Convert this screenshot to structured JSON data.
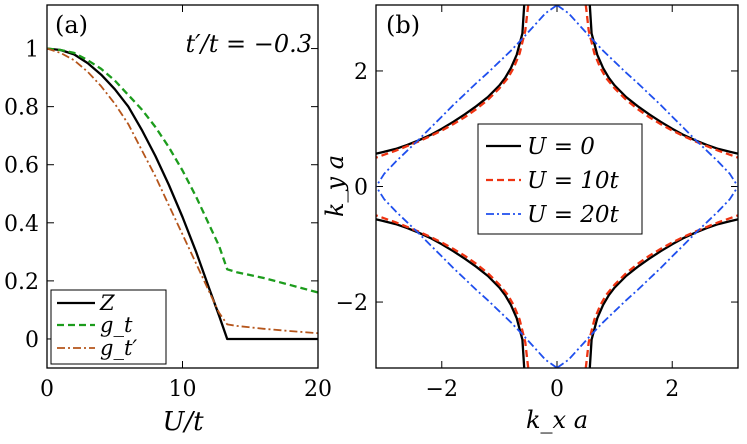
{
  "chart_data": [
    {
      "panel": "(a)",
      "type": "line",
      "annotation": "t′/t = −0.3",
      "xlabel": "U/t",
      "ylabel": "",
      "xlim": [
        0,
        20
      ],
      "ylim": [
        -0.1,
        1.15
      ],
      "xticks": [
        "0",
        "10",
        "20"
      ],
      "yticks": [
        "0",
        "0.2",
        "0.4",
        "0.6",
        "0.8",
        "1"
      ],
      "xtick_values": [
        0,
        10,
        20
      ],
      "ytick_values": [
        0,
        0.2,
        0.4,
        0.6,
        0.8,
        1.0
      ],
      "legend_position": "bottom-left",
      "series": [
        {
          "name": "Z",
          "color": "#000000",
          "style": "solid",
          "x": [
            0,
            1,
            2,
            3,
            4,
            5,
            6,
            7,
            8,
            9,
            10,
            11,
            12,
            12.7,
            13.3,
            14,
            16,
            18,
            20
          ],
          "y": [
            1.0,
            0.995,
            0.98,
            0.95,
            0.91,
            0.86,
            0.8,
            0.72,
            0.63,
            0.53,
            0.42,
            0.3,
            0.17,
            0.08,
            0.0,
            0.0,
            0.0,
            0.0,
            0.0
          ]
        },
        {
          "name": "g_t",
          "color": "#1c9c1c",
          "style": "dashed",
          "x": [
            0,
            1,
            2,
            3,
            4,
            5,
            6,
            7,
            8,
            9,
            10,
            11,
            12,
            12.7,
            13.3,
            14,
            16,
            18,
            20
          ],
          "y": [
            1.0,
            0.995,
            0.985,
            0.96,
            0.93,
            0.89,
            0.84,
            0.79,
            0.73,
            0.66,
            0.58,
            0.49,
            0.39,
            0.32,
            0.24,
            0.23,
            0.21,
            0.185,
            0.16
          ]
        },
        {
          "name": "g_t′",
          "color": "#b5551b",
          "style": "dashdot",
          "x": [
            0,
            1,
            2,
            3,
            4,
            5,
            6,
            7,
            8,
            9,
            10,
            11,
            12,
            12.7,
            13.3,
            14,
            16,
            18,
            20
          ],
          "y": [
            1.0,
            0.985,
            0.96,
            0.92,
            0.87,
            0.81,
            0.74,
            0.65,
            0.56,
            0.46,
            0.36,
            0.26,
            0.16,
            0.09,
            0.05,
            0.045,
            0.035,
            0.027,
            0.02
          ]
        }
      ]
    },
    {
      "panel": "(b)",
      "type": "line",
      "xlabel": "k_x a",
      "ylabel": "k_y a",
      "xlim": [
        -3.14159,
        3.14159
      ],
      "ylim": [
        -3.14159,
        3.14159
      ],
      "xticks": [
        "−2",
        "0",
        "2"
      ],
      "yticks": [
        "−2",
        "0",
        "2"
      ],
      "xtick_values": [
        -2,
        0,
        2
      ],
      "ytick_values": [
        -2,
        0,
        2
      ],
      "legend_position": "center",
      "series": [
        {
          "name": "U = 0",
          "color": "#000000",
          "style": "solid",
          "x": [
            0.57,
            0.6,
            0.7,
            0.8,
            0.9,
            1.0,
            1.2,
            1.4,
            1.6,
            1.8,
            2.0,
            2.2,
            2.4,
            2.6,
            2.8,
            3.0,
            3.14
          ],
          "y": [
            3.14,
            2.65,
            2.28,
            2.05,
            1.88,
            1.75,
            1.55,
            1.39,
            1.25,
            1.12,
            1.0,
            0.89,
            0.8,
            0.72,
            0.65,
            0.6,
            0.57
          ]
        },
        {
          "name": "U = 10t",
          "color": "#ee3311",
          "style": "dashed",
          "x": [
            0.5,
            0.55,
            0.65,
            0.75,
            0.85,
            1.0,
            1.2,
            1.4,
            1.6,
            1.8,
            2.0,
            2.2,
            2.4,
            2.6,
            2.8,
            3.0,
            3.14
          ],
          "y": [
            3.14,
            2.7,
            2.3,
            2.06,
            1.88,
            1.7,
            1.5,
            1.34,
            1.2,
            1.08,
            0.97,
            0.87,
            0.78,
            0.7,
            0.62,
            0.55,
            0.5
          ]
        },
        {
          "name": "U = 20t",
          "color": "#1f4fee",
          "style": "dashdot",
          "x": [
            0.0,
            0.2,
            0.4,
            0.6,
            0.8,
            1.0,
            1.2,
            1.4,
            1.6,
            1.8,
            2.0,
            2.2,
            2.4,
            2.6,
            2.8,
            3.0,
            3.14
          ],
          "y": [
            3.14,
            3.0,
            2.78,
            2.56,
            2.35,
            2.16,
            1.97,
            1.79,
            1.6,
            1.41,
            1.21,
            1.01,
            0.81,
            0.62,
            0.43,
            0.22,
            0.0
          ]
        }
      ]
    }
  ]
}
